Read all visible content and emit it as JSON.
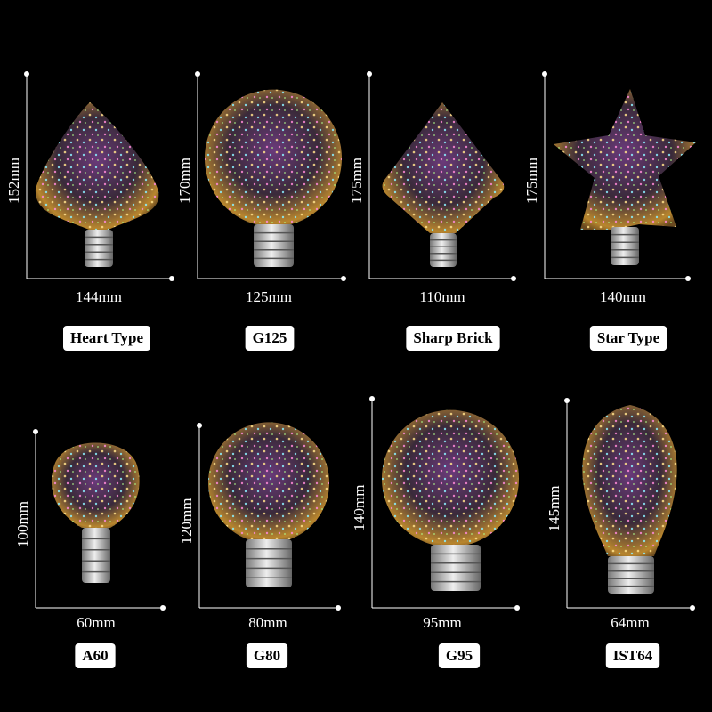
{
  "items": [
    {
      "name": "Heart Type",
      "height": "152mm",
      "width": "144mm"
    },
    {
      "name": "G125",
      "height": "170mm",
      "width": "125mm"
    },
    {
      "name": "Sharp Brick",
      "height": "175mm",
      "width": "110mm"
    },
    {
      "name": "Star Type",
      "height": "175mm",
      "width": "140mm"
    },
    {
      "name": "A60",
      "height": "100mm",
      "width": "60mm"
    },
    {
      "name": "G80",
      "height": "120mm",
      "width": "80mm"
    },
    {
      "name": "G95",
      "height": "140mm",
      "width": "95mm"
    },
    {
      "name": "IST64",
      "height": "145mm",
      "width": "64mm"
    }
  ]
}
